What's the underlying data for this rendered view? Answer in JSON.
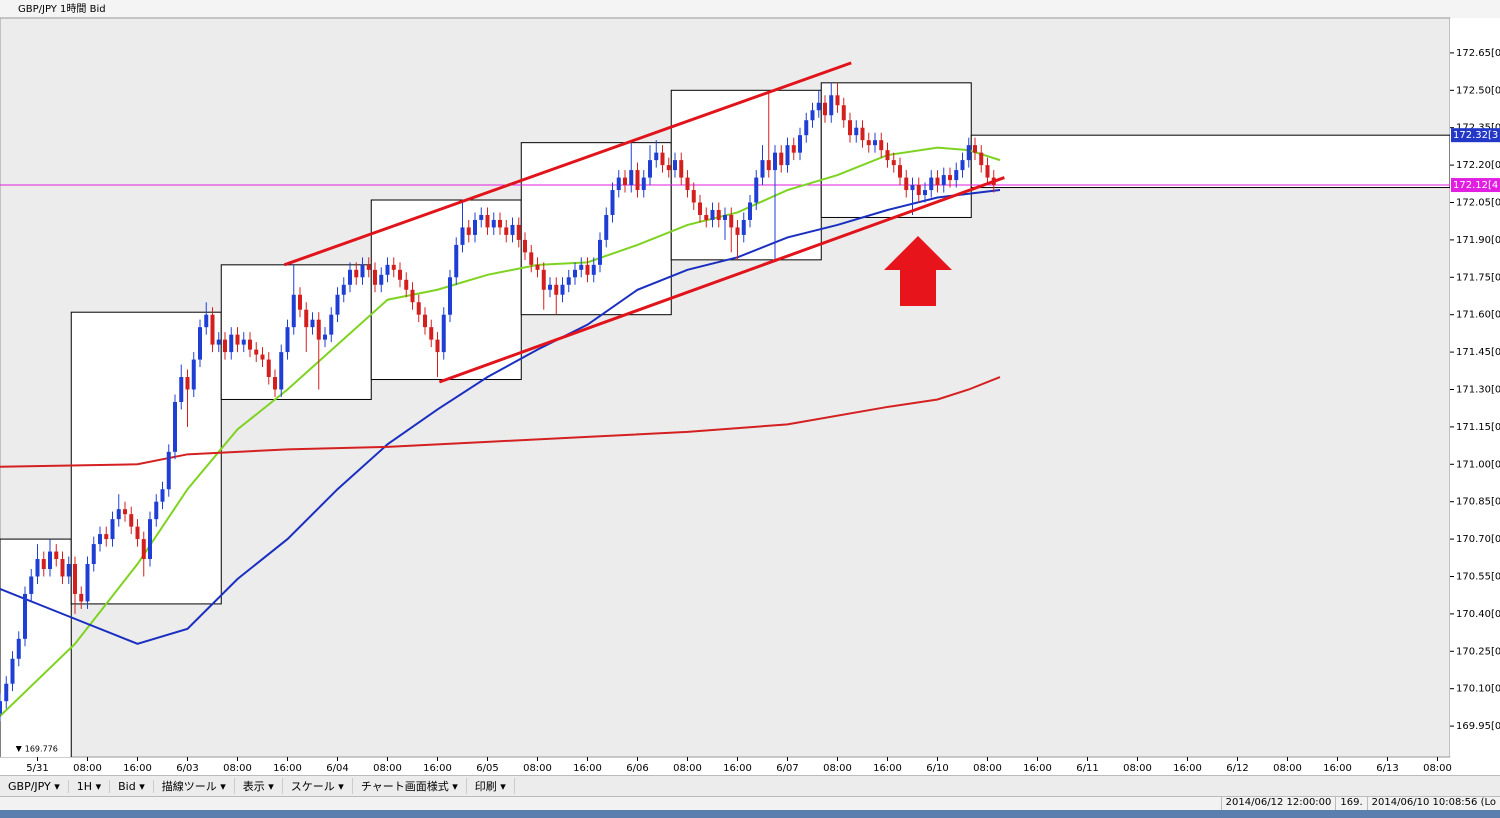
{
  "chart_data": {
    "type": "candlestick",
    "title": "GBP/JPY 1時間 Bid",
    "up_color": "#1f3fd4",
    "down_color": "#d41f1f",
    "x": [
      -6,
      -5,
      -4,
      -3,
      -2,
      -1,
      0,
      1,
      2,
      3,
      4,
      5,
      6,
      7,
      8,
      9,
      10,
      11,
      12,
      13,
      14,
      15,
      16,
      17,
      18,
      19,
      20,
      21,
      22,
      23,
      24,
      25,
      26,
      27,
      28,
      29,
      30,
      31,
      32,
      33,
      34,
      35,
      36,
      37,
      38,
      39,
      40,
      41,
      42,
      43,
      44,
      45,
      46,
      47,
      48,
      49,
      50,
      51,
      52,
      53,
      54,
      55,
      56,
      57,
      58,
      59,
      60,
      61,
      62,
      63,
      64,
      65,
      66,
      67,
      68,
      69,
      70,
      71,
      72,
      73,
      74,
      75,
      76,
      77,
      78,
      79,
      80,
      81,
      82,
      83,
      84,
      85,
      86,
      87,
      88,
      89,
      90,
      91,
      92,
      93,
      94,
      95,
      96,
      97,
      98,
      99,
      100,
      101,
      102,
      103,
      104,
      105,
      106,
      107,
      108,
      109,
      110,
      111,
      112,
      113,
      114,
      115,
      116,
      117,
      118,
      119,
      120,
      121,
      122,
      123,
      124,
      125,
      126,
      127,
      128,
      129,
      130,
      131,
      132,
      133,
      134,
      135,
      136,
      137,
      138,
      139,
      140,
      141,
      142,
      143,
      144,
      145,
      146,
      147,
      148,
      149,
      150,
      151,
      152,
      153
    ],
    "open": [
      170.0,
      170.05,
      170.12,
      170.22,
      170.3,
      170.48,
      170.55,
      170.62,
      170.58,
      170.65,
      170.62,
      170.55,
      170.6,
      170.48,
      170.45,
      170.6,
      170.68,
      170.72,
      170.7,
      170.78,
      170.82,
      170.8,
      170.75,
      170.7,
      170.62,
      170.78,
      170.85,
      170.9,
      171.05,
      171.25,
      171.35,
      171.3,
      171.42,
      171.55,
      171.6,
      171.48,
      171.5,
      171.45,
      171.52,
      171.48,
      171.5,
      171.46,
      171.44,
      171.42,
      171.35,
      171.3,
      171.45,
      171.55,
      171.68,
      171.62,
      171.55,
      171.58,
      171.5,
      171.52,
      171.6,
      171.68,
      171.72,
      171.78,
      171.75,
      171.8,
      171.78,
      171.72,
      171.76,
      171.8,
      171.78,
      171.74,
      171.7,
      171.65,
      171.6,
      171.55,
      171.5,
      171.45,
      171.6,
      171.75,
      171.88,
      171.95,
      171.92,
      171.98,
      172.0,
      171.95,
      171.98,
      171.95,
      171.92,
      171.96,
      171.9,
      171.85,
      171.8,
      171.78,
      171.7,
      171.72,
      171.68,
      171.72,
      171.75,
      171.78,
      171.8,
      171.76,
      171.8,
      171.9,
      172.0,
      172.1,
      172.15,
      172.12,
      172.18,
      172.1,
      172.15,
      172.22,
      172.25,
      172.2,
      172.18,
      172.22,
      172.15,
      172.1,
      172.05,
      172.0,
      171.98,
      172.02,
      171.98,
      172.0,
      171.95,
      171.92,
      171.98,
      172.05,
      172.15,
      172.22,
      172.18,
      172.25,
      172.2,
      172.28,
      172.25,
      172.32,
      172.38,
      172.42,
      172.45,
      172.4,
      172.48,
      172.44,
      172.38,
      172.32,
      172.35,
      172.3,
      172.28,
      172.3,
      172.26,
      172.22,
      172.2,
      172.15,
      172.1,
      172.12,
      172.08,
      172.1,
      172.15,
      172.12,
      172.16,
      172.14,
      172.18,
      172.22,
      172.28,
      172.25,
      172.2,
      172.15
    ],
    "high": [
      170.08,
      170.15,
      170.25,
      170.33,
      170.51,
      170.58,
      170.68,
      170.65,
      170.7,
      170.68,
      170.65,
      170.63,
      170.63,
      170.51,
      170.63,
      170.71,
      170.75,
      170.75,
      170.81,
      170.88,
      170.85,
      170.83,
      170.78,
      170.73,
      170.81,
      170.88,
      170.93,
      171.08,
      171.28,
      171.4,
      171.38,
      171.45,
      171.58,
      171.65,
      171.63,
      171.53,
      171.53,
      171.55,
      171.55,
      171.53,
      171.53,
      171.49,
      171.47,
      171.45,
      171.38,
      171.48,
      171.58,
      171.8,
      171.71,
      171.65,
      171.61,
      171.61,
      171.55,
      171.63,
      171.71,
      171.75,
      171.81,
      171.81,
      171.83,
      171.83,
      171.81,
      171.79,
      171.83,
      171.83,
      171.81,
      171.77,
      171.73,
      171.68,
      171.63,
      171.58,
      171.53,
      171.63,
      171.78,
      171.91,
      172.05,
      171.98,
      172.01,
      172.03,
      172.03,
      172.01,
      172.01,
      171.98,
      171.99,
      171.99,
      171.93,
      171.88,
      171.83,
      171.81,
      171.75,
      171.75,
      171.75,
      171.78,
      171.81,
      171.83,
      171.83,
      171.83,
      171.93,
      172.03,
      172.13,
      172.18,
      172.18,
      172.3,
      172.21,
      172.18,
      172.28,
      172.3,
      172.28,
      172.23,
      172.25,
      172.25,
      172.18,
      172.13,
      172.08,
      172.03,
      172.05,
      172.05,
      172.03,
      172.03,
      171.98,
      172.01,
      172.08,
      172.18,
      172.28,
      172.5,
      172.28,
      172.28,
      172.31,
      172.31,
      172.35,
      172.41,
      172.45,
      172.5,
      172.48,
      172.53,
      172.53,
      172.47,
      172.41,
      172.38,
      172.38,
      172.33,
      172.33,
      172.33,
      172.29,
      172.25,
      172.23,
      172.18,
      172.15,
      172.15,
      172.13,
      172.18,
      172.18,
      172.19,
      172.19,
      172.21,
      172.25,
      172.31,
      172.31,
      172.28,
      172.23,
      172.18
    ],
    "low": [
      169.97,
      170.02,
      170.09,
      170.19,
      170.27,
      170.45,
      170.52,
      170.55,
      170.55,
      170.59,
      170.52,
      170.52,
      170.4,
      170.42,
      170.42,
      170.57,
      170.65,
      170.67,
      170.67,
      170.75,
      170.77,
      170.72,
      170.67,
      170.55,
      170.59,
      170.75,
      170.82,
      170.87,
      171.02,
      171.22,
      171.15,
      171.27,
      171.39,
      171.52,
      171.45,
      171.45,
      171.42,
      171.42,
      171.45,
      171.45,
      171.43,
      171.41,
      171.39,
      171.32,
      171.27,
      171.27,
      171.42,
      171.52,
      171.59,
      171.45,
      171.52,
      171.3,
      171.47,
      171.49,
      171.57,
      171.65,
      171.69,
      171.72,
      171.72,
      171.75,
      171.69,
      171.69,
      171.73,
      171.75,
      171.71,
      171.67,
      171.62,
      171.57,
      171.52,
      171.47,
      171.35,
      171.42,
      171.57,
      171.72,
      171.85,
      171.89,
      171.89,
      171.95,
      171.92,
      171.92,
      171.92,
      171.89,
      171.89,
      171.87,
      171.82,
      171.77,
      171.75,
      171.62,
      171.67,
      171.6,
      171.65,
      171.69,
      171.72,
      171.75,
      171.73,
      171.73,
      171.77,
      171.87,
      171.97,
      172.07,
      172.09,
      172.09,
      172.07,
      172.07,
      172.12,
      172.19,
      172.17,
      172.15,
      172.15,
      172.12,
      172.07,
      172.02,
      171.97,
      171.95,
      171.95,
      171.95,
      171.9,
      171.85,
      171.82,
      171.89,
      171.95,
      172.02,
      172.12,
      172.15,
      171.82,
      172.17,
      172.17,
      172.22,
      172.22,
      172.29,
      172.35,
      172.39,
      172.37,
      172.37,
      172.41,
      172.35,
      172.29,
      172.29,
      172.27,
      172.25,
      172.25,
      172.23,
      172.19,
      172.17,
      172.12,
      172.07,
      172.0,
      172.05,
      172.05,
      172.07,
      172.09,
      172.09,
      172.11,
      172.11,
      172.15,
      172.19,
      172.22,
      172.17,
      172.12,
      172.09
    ],
    "close": [
      170.05,
      170.12,
      170.22,
      170.3,
      170.48,
      170.55,
      170.62,
      170.58,
      170.65,
      170.62,
      170.55,
      170.6,
      170.48,
      170.45,
      170.6,
      170.68,
      170.72,
      170.7,
      170.78,
      170.82,
      170.8,
      170.75,
      170.7,
      170.62,
      170.78,
      170.85,
      170.9,
      171.05,
      171.25,
      171.35,
      171.3,
      171.42,
      171.55,
      171.6,
      171.48,
      171.5,
      171.45,
      171.52,
      171.48,
      171.5,
      171.46,
      171.44,
      171.42,
      171.35,
      171.3,
      171.45,
      171.55,
      171.68,
      171.62,
      171.55,
      171.58,
      171.5,
      171.52,
      171.6,
      171.68,
      171.72,
      171.78,
      171.75,
      171.8,
      171.78,
      171.72,
      171.76,
      171.8,
      171.78,
      171.74,
      171.7,
      171.65,
      171.6,
      171.55,
      171.5,
      171.45,
      171.6,
      171.75,
      171.88,
      171.95,
      171.92,
      171.98,
      172.0,
      171.95,
      171.98,
      171.95,
      171.92,
      171.96,
      171.9,
      171.85,
      171.8,
      171.78,
      171.7,
      171.72,
      171.68,
      171.72,
      171.75,
      171.78,
      171.8,
      171.76,
      171.8,
      171.9,
      172.0,
      172.1,
      172.15,
      172.12,
      172.18,
      172.1,
      172.15,
      172.22,
      172.25,
      172.2,
      172.18,
      172.22,
      172.15,
      172.1,
      172.05,
      172.0,
      171.98,
      172.02,
      171.98,
      172.0,
      171.95,
      171.92,
      171.98,
      172.05,
      172.15,
      172.22,
      172.18,
      172.25,
      172.2,
      172.28,
      172.25,
      172.32,
      172.38,
      172.42,
      172.45,
      172.4,
      172.48,
      172.44,
      172.38,
      172.32,
      172.35,
      172.3,
      172.28,
      172.3,
      172.26,
      172.22,
      172.2,
      172.15,
      172.1,
      172.12,
      172.08,
      172.1,
      172.15,
      172.12,
      172.16,
      172.14,
      172.18,
      172.22,
      172.28,
      172.25,
      172.2,
      172.15,
      172.12
    ],
    "moving_averages": [
      {
        "color": "#7ed321",
        "x": [
          -6,
          6,
          16,
          24,
          32,
          40,
          48,
          56,
          64,
          72,
          80,
          88,
          96,
          104,
          112,
          120,
          128,
          136,
          144,
          149,
          154
        ],
        "values": [
          169.99,
          170.28,
          170.6,
          170.9,
          171.14,
          171.3,
          171.48,
          171.66,
          171.7,
          171.76,
          171.8,
          171.81,
          171.88,
          171.96,
          172.01,
          172.1,
          172.16,
          172.24,
          172.27,
          172.26,
          172.22
        ]
      },
      {
        "color": "#1a2fc0",
        "x": [
          -6,
          6,
          16,
          24,
          32,
          40,
          48,
          56,
          64,
          72,
          80,
          88,
          96,
          104,
          112,
          120,
          128,
          136,
          144,
          154
        ],
        "values": [
          170.5,
          170.38,
          170.28,
          170.34,
          170.54,
          170.7,
          170.9,
          171.08,
          171.22,
          171.35,
          171.46,
          171.56,
          171.7,
          171.78,
          171.83,
          171.91,
          171.96,
          172.02,
          172.07,
          172.1
        ]
      },
      {
        "color": "#d42020",
        "x": [
          -6,
          16,
          24,
          40,
          56,
          72,
          88,
          104,
          120,
          136,
          144,
          149,
          154
        ],
        "values": [
          170.99,
          171.0,
          171.04,
          171.06,
          171.07,
          171.09,
          171.11,
          171.13,
          171.16,
          171.23,
          171.26,
          171.3,
          171.35
        ]
      }
    ],
    "boxes": [
      {
        "x": [
          -6,
          5.4
        ],
        "high": 170.7,
        "low": 169.78
      },
      {
        "x": [
          5.4,
          29.4
        ],
        "high": 171.61,
        "low": 170.44
      },
      {
        "x": [
          29.4,
          53.4
        ],
        "high": 171.8,
        "low": 171.26
      },
      {
        "x": [
          53.4,
          77.4
        ],
        "high": 172.06,
        "low": 171.34
      },
      {
        "x": [
          77.4,
          101.4
        ],
        "high": 172.29,
        "low": 171.6
      },
      {
        "x": [
          101.4,
          125.4
        ],
        "high": 172.5,
        "low": 171.82
      },
      {
        "x": [
          125.4,
          149.4
        ],
        "high": 172.53,
        "low": 171.99
      },
      {
        "x": [
          149.4,
          226
        ],
        "high": 172.32,
        "low": 172.11
      }
    ],
    "trendlines": [
      {
        "color": "#e0141a",
        "x": [
          39.5,
          130.2
        ],
        "values": [
          171.8,
          172.61
        ]
      },
      {
        "color": "#e0141a",
        "x": [
          64.3,
          154.7
        ],
        "values": [
          171.33,
          172.15
        ]
      }
    ],
    "price_lines": [
      {
        "value": 172.32,
        "label": "172.32[3",
        "color": "#2438c8"
      },
      {
        "value": 172.12,
        "label": "172.12[4",
        "color": "#e21ee2"
      }
    ],
    "low_marker": {
      "x": -3,
      "value": 169.776
    },
    "xlim": [
      -6,
      226
    ],
    "xticks": [
      {
        "value": 0,
        "label": "5/31"
      },
      {
        "value": 8,
        "label": "08:00"
      },
      {
        "value": 16,
        "label": "16:00"
      },
      {
        "value": 24,
        "label": "6/03"
      },
      {
        "value": 32,
        "label": "08:00"
      },
      {
        "value": 40,
        "label": "16:00"
      },
      {
        "value": 48,
        "label": "6/04"
      },
      {
        "value": 56,
        "label": "08:00"
      },
      {
        "value": 64,
        "label": "16:00"
      },
      {
        "value": 72,
        "label": "6/05"
      },
      {
        "value": 80,
        "label": "08:00"
      },
      {
        "value": 88,
        "label": "16:00"
      },
      {
        "value": 96,
        "label": "6/06"
      },
      {
        "value": 104,
        "label": "08:00"
      },
      {
        "value": 112,
        "label": "16:00"
      },
      {
        "value": 120,
        "label": "6/07"
      },
      {
        "value": 128,
        "label": "08:00"
      },
      {
        "value": 136,
        "label": "16:00"
      },
      {
        "value": 144,
        "label": "6/10"
      },
      {
        "value": 152,
        "label": "08:00"
      },
      {
        "value": 160,
        "label": "16:00"
      },
      {
        "value": 168,
        "label": "6/11"
      },
      {
        "value": 176,
        "label": "08:00"
      },
      {
        "value": 184,
        "label": "16:00"
      },
      {
        "value": 192,
        "label": "6/12"
      },
      {
        "value": 200,
        "label": "08:00"
      },
      {
        "value": 208,
        "label": "16:00"
      },
      {
        "value": 216,
        "label": "6/13"
      },
      {
        "value": 224,
        "label": "08:00"
      }
    ],
    "ylim": [
      169.826,
      172.79
    ],
    "yticks": [
      {
        "value": 172.65,
        "label": "172.65[0]"
      },
      {
        "value": 172.5,
        "label": "172.50[0]"
      },
      {
        "value": 172.35,
        "label": "172.35[0]"
      },
      {
        "value": 172.2,
        "label": "172.20[0]"
      },
      {
        "value": 172.05,
        "label": "172.05[0]"
      },
      {
        "value": 171.9,
        "label": "171.90[0]"
      },
      {
        "value": 171.75,
        "label": "171.75[0]"
      },
      {
        "value": 171.6,
        "label": "171.60[0]"
      },
      {
        "value": 171.45,
        "label": "171.45[0]"
      },
      {
        "value": 171.3,
        "label": "171.30[0]"
      },
      {
        "value": 171.15,
        "label": "171.15[0]"
      },
      {
        "value": 171.0,
        "label": "171.00[0]"
      },
      {
        "value": 170.85,
        "label": "170.85[0]"
      },
      {
        "value": 170.7,
        "label": "170.70[0]"
      },
      {
        "value": 170.55,
        "label": "170.55[0]"
      },
      {
        "value": 170.4,
        "label": "170.40[0]"
      },
      {
        "value": 170.25,
        "label": "170.25[0]"
      },
      {
        "value": 170.1,
        "label": "170.10[0]"
      },
      {
        "value": 169.95,
        "label": "169.95[0]"
      }
    ]
  },
  "toolbar": [
    "GBP/JPY",
    "1H",
    "Bid",
    "描線ツール",
    "表示",
    "スケール",
    "チャート画面様式",
    "印刷"
  ],
  "status_bar": [
    "2014/06/12 12:00:00",
    "169.",
    "2014/06/10 10:08:56 (Lo"
  ]
}
